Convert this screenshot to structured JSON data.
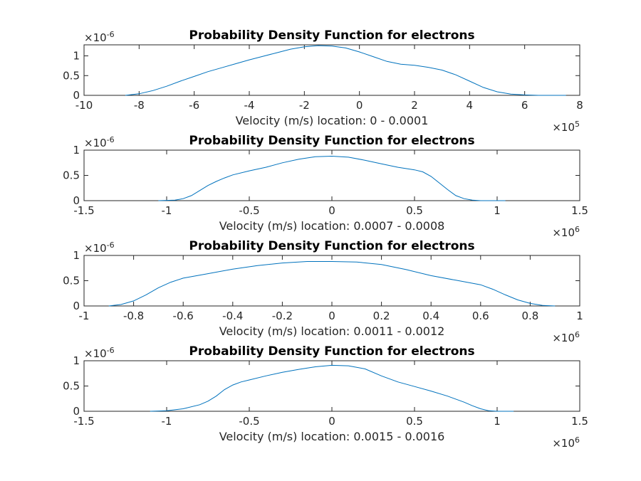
{
  "chart_data": [
    {
      "type": "line",
      "title": "Probability Density Function for electrons",
      "xlabel": "Velocity (m/s) location: 0 - 0.0001",
      "xlim": [
        -10,
        8
      ],
      "ylim": [
        0,
        1.28
      ],
      "xticks": [
        "-10",
        "-8",
        "-6",
        "-4",
        "-2",
        "0",
        "2",
        "4",
        "6",
        "8"
      ],
      "xtick_values": [
        -10,
        -8,
        -6,
        -4,
        -2,
        0,
        2,
        4,
        6,
        8
      ],
      "yticks": [
        "0",
        "0.5",
        "1"
      ],
      "ytick_values": [
        0,
        0.5,
        1
      ],
      "x_exponent": "5",
      "y_exponent": "-6",
      "series": [
        {
          "color": "#0072bd",
          "x": [
            -8.5,
            -8,
            -7.5,
            -7,
            -6.5,
            -6,
            -5.5,
            -5,
            -4.5,
            -4,
            -3.5,
            -3,
            -2.5,
            -2,
            -1.5,
            -1,
            -0.5,
            0,
            0.5,
            1,
            1.5,
            2,
            2.5,
            3,
            3.5,
            4,
            4.5,
            5,
            5.5,
            6,
            6.5,
            7,
            7.5
          ],
          "y": [
            0.0,
            0.04,
            0.12,
            0.23,
            0.36,
            0.48,
            0.6,
            0.7,
            0.8,
            0.9,
            0.99,
            1.08,
            1.17,
            1.23,
            1.26,
            1.25,
            1.2,
            1.1,
            0.98,
            0.86,
            0.79,
            0.76,
            0.71,
            0.64,
            0.52,
            0.36,
            0.2,
            0.09,
            0.03,
            0.01,
            0.0,
            0.0,
            0.0
          ]
        }
      ]
    },
    {
      "type": "line",
      "title": "Probability Density Function for electrons",
      "xlabel": "Velocity (m/s) location: 0.0007 - 0.0008",
      "xlim": [
        -1.5,
        1.5
      ],
      "ylim": [
        0,
        1
      ],
      "xticks": [
        "-1.5",
        "-1",
        "-0.5",
        "0",
        "0.5",
        "1",
        "1.5"
      ],
      "xtick_values": [
        -1.5,
        -1,
        -0.5,
        0,
        0.5,
        1,
        1.5
      ],
      "yticks": [
        "0",
        "0.5",
        "1"
      ],
      "ytick_values": [
        0,
        0.5,
        1
      ],
      "x_exponent": "6",
      "y_exponent": "-6",
      "series": [
        {
          "color": "#0072bd",
          "x": [
            -1.05,
            -0.95,
            -0.9,
            -0.85,
            -0.8,
            -0.75,
            -0.7,
            -0.65,
            -0.6,
            -0.5,
            -0.4,
            -0.3,
            -0.2,
            -0.1,
            0,
            0.1,
            0.2,
            0.3,
            0.4,
            0.5,
            0.55,
            0.6,
            0.65,
            0.7,
            0.75,
            0.8,
            0.85,
            0.9,
            1.05
          ],
          "y": [
            0.0,
            0.01,
            0.04,
            0.1,
            0.2,
            0.3,
            0.38,
            0.45,
            0.51,
            0.59,
            0.66,
            0.75,
            0.82,
            0.87,
            0.88,
            0.86,
            0.8,
            0.73,
            0.66,
            0.61,
            0.57,
            0.48,
            0.35,
            0.22,
            0.1,
            0.04,
            0.01,
            0.0,
            0.0
          ]
        }
      ]
    },
    {
      "type": "line",
      "title": "Probability Density Function for electrons",
      "xlabel": "Velocity (m/s) location: 0.0011 - 0.0012",
      "xlim": [
        -1,
        1
      ],
      "ylim": [
        0,
        1
      ],
      "xticks": [
        "-1",
        "-0.8",
        "-0.6",
        "-0.4",
        "-0.2",
        "0",
        "0.2",
        "0.4",
        "0.6",
        "0.8",
        "1"
      ],
      "xtick_values": [
        -1,
        -0.8,
        -0.6,
        -0.4,
        -0.2,
        0,
        0.2,
        0.4,
        0.6,
        0.8,
        1
      ],
      "yticks": [
        "0",
        "0.5",
        "1"
      ],
      "ytick_values": [
        0,
        0.5,
        1
      ],
      "x_exponent": "6",
      "y_exponent": "-6",
      "series": [
        {
          "color": "#0072bd",
          "x": [
            -0.9,
            -0.85,
            -0.8,
            -0.75,
            -0.7,
            -0.65,
            -0.6,
            -0.5,
            -0.4,
            -0.3,
            -0.2,
            -0.1,
            0,
            0.1,
            0.2,
            0.3,
            0.4,
            0.5,
            0.6,
            0.65,
            0.7,
            0.75,
            0.8,
            0.85,
            0.9
          ],
          "y": [
            0.0,
            0.03,
            0.1,
            0.22,
            0.36,
            0.47,
            0.55,
            0.64,
            0.73,
            0.8,
            0.85,
            0.88,
            0.88,
            0.87,
            0.82,
            0.72,
            0.6,
            0.51,
            0.42,
            0.33,
            0.22,
            0.12,
            0.05,
            0.01,
            0.0
          ]
        }
      ]
    },
    {
      "type": "line",
      "title": "Probability Density Function for electrons",
      "xlabel": "Velocity (m/s) location: 0.0015 - 0.0016",
      "xlim": [
        -1.5,
        1.5
      ],
      "ylim": [
        0,
        1
      ],
      "xticks": [
        "-1.5",
        "-1",
        "-0.5",
        "0",
        "0.5",
        "1",
        "1.5"
      ],
      "xtick_values": [
        -1.5,
        -1,
        -0.5,
        0,
        0.5,
        1,
        1.5
      ],
      "yticks": [
        "0",
        "0.5",
        "1"
      ],
      "ytick_values": [
        0,
        0.5,
        1
      ],
      "x_exponent": "6",
      "y_exponent": "-6",
      "series": [
        {
          "color": "#0072bd",
          "x": [
            -1.1,
            -1.0,
            -0.9,
            -0.8,
            -0.75,
            -0.7,
            -0.65,
            -0.6,
            -0.55,
            -0.5,
            -0.4,
            -0.3,
            -0.2,
            -0.1,
            0,
            0.1,
            0.2,
            0.3,
            0.4,
            0.5,
            0.6,
            0.7,
            0.8,
            0.85,
            0.9,
            0.95,
            1.0,
            1.1
          ],
          "y": [
            0.0,
            0.01,
            0.05,
            0.13,
            0.2,
            0.3,
            0.43,
            0.52,
            0.58,
            0.62,
            0.7,
            0.77,
            0.83,
            0.88,
            0.91,
            0.9,
            0.84,
            0.7,
            0.58,
            0.49,
            0.4,
            0.3,
            0.18,
            0.11,
            0.05,
            0.01,
            0.0,
            0.0
          ]
        }
      ]
    }
  ]
}
